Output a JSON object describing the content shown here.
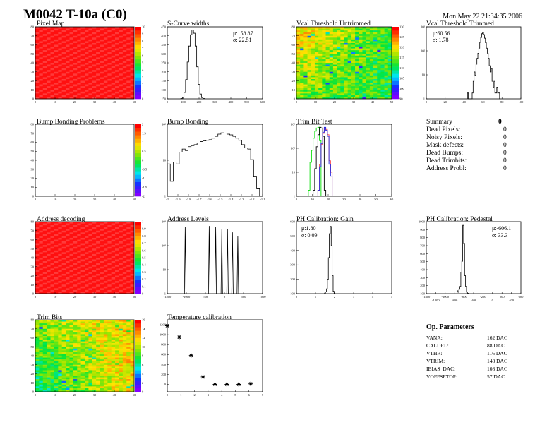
{
  "header": {
    "title": "M0042 T-10a (C0)",
    "timestamp": "Mon May 22 21:34:35 2006"
  },
  "colors": {
    "frame": "#000000",
    "pixel_map": "#ff0000",
    "trim_green": "#00dd00",
    "trim_black": "#000000",
    "trim_blue": "#2222dd",
    "trim_red": "#ff4444"
  },
  "panels": {
    "pixel_map": {
      "title": "Pixel Map",
      "type": "heatmap",
      "x_ticks": [
        "0",
        "10",
        "20",
        "30",
        "40",
        "50"
      ],
      "y_ticks": [
        "0",
        "10",
        "20",
        "30",
        "40",
        "50",
        "60",
        "70",
        "80"
      ],
      "z_ticks": [
        "0",
        "1",
        "2",
        "3",
        "4",
        "5",
        "6",
        "7",
        "8",
        "9",
        "10"
      ],
      "zlim": [
        0,
        10
      ],
      "uniform_value": 10
    },
    "scurve_widths": {
      "title": "S-Curve widths",
      "type": "histogram",
      "mean": "μ:158.87",
      "sigma": "σ: 22.51",
      "xlim": [
        0,
        600
      ],
      "ylim": [
        0,
        450
      ],
      "x_ticks": [
        "0",
        "100",
        "200",
        "300",
        "400",
        "500",
        "600"
      ],
      "y_ticks": [
        "50",
        "100",
        "150",
        "200",
        "250",
        "300",
        "350",
        "400",
        "450"
      ],
      "bins_x": [
        90,
        100,
        110,
        120,
        130,
        140,
        150,
        160,
        170,
        180,
        190,
        200,
        210,
        220,
        230
      ],
      "bins_y": [
        2,
        10,
        40,
        120,
        230,
        330,
        400,
        430,
        410,
        330,
        200,
        90,
        30,
        8,
        2
      ]
    },
    "vcal_untrimmed": {
      "title": "Vcal Threshold Untrimmed",
      "type": "heatmap",
      "x_ticks": [
        "0",
        "10",
        "20",
        "30",
        "40",
        "50"
      ],
      "y_ticks": [
        "0",
        "10",
        "20",
        "30",
        "40",
        "50",
        "60",
        "70",
        "80"
      ],
      "z_ticks": [
        "90",
        "100",
        "105",
        "110",
        "115",
        "120",
        "125",
        "130"
      ],
      "zlim": [
        90,
        130
      ]
    },
    "vcal_trimmed": {
      "title": "Vcal Threshold Trimmed",
      "type": "histogram",
      "log_y": true,
      "mean": "μ:60.56",
      "sigma": "σ: 1.78",
      "xlim": [
        0,
        100
      ],
      "ylim": [
        0.5,
        2500
      ],
      "x_ticks": [
        "0",
        "20",
        "40",
        "60",
        "80",
        "100"
      ],
      "y_ticks": [
        "1",
        "10",
        "10²",
        "10³"
      ],
      "bins_x": [
        44,
        45,
        46,
        47,
        48,
        49,
        50,
        51,
        52,
        53,
        54,
        55,
        56,
        57,
        58,
        59,
        60,
        61,
        62,
        63,
        64,
        65,
        66,
        67,
        68,
        69,
        70,
        71,
        72,
        73,
        74,
        75,
        76,
        77,
        78
      ],
      "bins_y": [
        1,
        0,
        0,
        0,
        0,
        1,
        4,
        12,
        8,
        30,
        60,
        110,
        200,
        400,
        700,
        1100,
        1300,
        1000,
        650,
        380,
        200,
        110,
        60,
        25,
        12,
        18,
        4,
        2,
        4,
        1,
        1,
        2,
        1,
        1,
        0
      ]
    },
    "bump_problems": {
      "title": "Bump Bonding Problems",
      "type": "heatmap",
      "x_ticks": [
        "0",
        "10",
        "20",
        "30",
        "40",
        "50"
      ],
      "y_ticks": [
        "0",
        "10",
        "20",
        "30",
        "40",
        "50",
        "60",
        "70",
        "80"
      ],
      "z_ticks": [
        "-2",
        "-1.5",
        "-1",
        "-0.5",
        "0",
        "0.5",
        "1",
        "1.5",
        "2"
      ],
      "zlim": [
        -2,
        2
      ],
      "empty": true
    },
    "bump_bonding": {
      "title": "Bump Bonding",
      "type": "histogram",
      "log_y": true,
      "xlim": [
        -2.0,
        -1.1
      ],
      "ylim": [
        0.5,
        400
      ],
      "x_ticks": [
        "-2",
        "-1.9",
        "-1.8",
        "-1.7",
        "-1.6",
        "-1.5",
        "-1.4",
        "-1.3",
        "-1.2",
        "-1.1"
      ],
      "y_ticks": [
        "1",
        "10",
        "10²"
      ],
      "bins_y": [
        10,
        2,
        12,
        10,
        30,
        40,
        35,
        50,
        55,
        60,
        70,
        80,
        85,
        90,
        95,
        110,
        130,
        160,
        180,
        175,
        160,
        150,
        130,
        110,
        90,
        60,
        45,
        40,
        15,
        3,
        1,
        0
      ]
    },
    "trim_bit_test": {
      "title": "Trim Bit Test",
      "type": "histogram",
      "log_y": true,
      "xlim": [
        0,
        60
      ],
      "ylim": [
        0.5,
        2000
      ],
      "x_ticks": [
        "0",
        "10",
        "20",
        "30",
        "40",
        "50",
        "60"
      ],
      "y_ticks": [
        "1",
        "10",
        "10²",
        "10³"
      ],
      "series": [
        {
          "color": "#00dd00",
          "bins_x": [
            8,
            9,
            10,
            11,
            12,
            13,
            14,
            15
          ],
          "bins_y": [
            1,
            25,
            100,
            400,
            900,
            1300,
            1400,
            300
          ]
        },
        {
          "color": "#000000",
          "bins_x": [
            11,
            12,
            13,
            14,
            15,
            16,
            17,
            18
          ],
          "bins_y": [
            1,
            12,
            150,
            600,
            1400,
            1300,
            500,
            1
          ]
        },
        {
          "color": "#ff4444",
          "bins_x": [
            14,
            15,
            16,
            17,
            18,
            19,
            20,
            21,
            22
          ],
          "bins_y": [
            1,
            20,
            200,
            700,
            1300,
            1100,
            600,
            30,
            8
          ]
        },
        {
          "color": "#2222dd",
          "bins_x": [
            14,
            15,
            16,
            17,
            18,
            19,
            20,
            21,
            22
          ],
          "bins_y": [
            1,
            15,
            220,
            800,
            1400,
            1000,
            500,
            20,
            5
          ]
        }
      ]
    },
    "summary": {
      "title": "Summary",
      "total": "0",
      "rows": [
        {
          "label": "Dead Pixels:",
          "value": "0"
        },
        {
          "label": "Noisy Pixels:",
          "value": "0"
        },
        {
          "label": "Mask defects:",
          "value": "0"
        },
        {
          "label": "Dead Bumps:",
          "value": "0"
        },
        {
          "label": "Dead Trimbits:",
          "value": "0"
        },
        {
          "label": "Address Probl:",
          "value": "0"
        }
      ]
    },
    "address_decoding": {
      "title": "Address decoding",
      "type": "heatmap",
      "x_ticks": [
        "0",
        "10",
        "20",
        "30",
        "40",
        "50"
      ],
      "y_ticks": [
        "0",
        "10",
        "20",
        "30",
        "40",
        "50",
        "60",
        "70",
        "80"
      ],
      "z_ticks": [
        "0",
        "0.1",
        "0.2",
        "0.3",
        "0.4",
        "0.5",
        "0.6",
        "0.7",
        "0.8",
        "0.9",
        "1"
      ],
      "zlim": [
        0,
        1
      ],
      "uniform_value": 1
    },
    "address_levels": {
      "title": "Address Levels",
      "type": "histogram",
      "log_y": true,
      "xlim": [
        -1500,
        1000
      ],
      "ylim": [
        0.5,
        1200
      ],
      "x_ticks": [
        "-1500",
        "-1000",
        "-500",
        "0",
        "500",
        "1000"
      ],
      "y_ticks": [
        "1",
        "10",
        "10²",
        "10³"
      ],
      "peaks_x": [
        -1030,
        -400,
        -230,
        -70,
        80,
        210,
        350
      ],
      "peaks_y": [
        700,
        750,
        650,
        550,
        520,
        380,
        260
      ]
    },
    "ph_gain": {
      "title": "PH Calibration: Gain",
      "type": "histogram",
      "mean": "μ:1.80",
      "sigma": "σ: 0.09",
      "xlim": [
        0,
        5
      ],
      "ylim": [
        0,
        600
      ],
      "x_ticks": [
        "0",
        "1",
        "2",
        "3",
        "4",
        "5"
      ],
      "y_ticks": [
        "100",
        "200",
        "300",
        "400",
        "500",
        "600"
      ],
      "bins_x": [
        1.5,
        1.55,
        1.6,
        1.65,
        1.7,
        1.75,
        1.8,
        1.85,
        1.9,
        1.95,
        2.0
      ],
      "bins_y": [
        5,
        15,
        40,
        120,
        300,
        500,
        560,
        400,
        150,
        20,
        2
      ]
    },
    "ph_pedestal": {
      "title": "PH Calibration: Pedestal",
      "type": "histogram",
      "mean": "μ:-606.1",
      "sigma": "σ: 33.3",
      "xlim": [
        -1400,
        600
      ],
      "ylim": [
        0,
        1000
      ],
      "x_ticks": [
        "-1400",
        "-1200",
        "-1000",
        "-800",
        "-600",
        "-400",
        "-200",
        "0",
        "200",
        "400",
        "600"
      ],
      "y_ticks": [
        "100",
        "200",
        "300",
        "400",
        "500",
        "600",
        "700",
        "800",
        "900",
        "1000"
      ],
      "bins_x": [
        -740,
        -720,
        -700,
        -680,
        -660,
        -640,
        -620,
        -600,
        -580,
        -560,
        -540,
        -520
      ],
      "bins_y": [
        40,
        20,
        60,
        100,
        300,
        450,
        950,
        700,
        250,
        100,
        20,
        5
      ]
    },
    "trim_bits": {
      "title": "Trim Bits",
      "type": "heatmap",
      "x_ticks": [
        "0",
        "10",
        "20",
        "30",
        "40",
        "50"
      ],
      "y_ticks": [
        "0",
        "10",
        "20",
        "30",
        "40",
        "50",
        "60",
        "70",
        "80"
      ],
      "z_ticks": [
        "0",
        "2",
        "4",
        "6",
        "8",
        "10",
        "12",
        "14",
        "16"
      ],
      "zlim": [
        0,
        16
      ]
    },
    "temperature": {
      "title": "Temperature calibration",
      "type": "scatter",
      "xlim": [
        0,
        8
      ],
      "ylim": [
        -150,
        1300
      ],
      "x_ticks": [
        "0",
        "1",
        "2",
        "3",
        "4",
        "5",
        "6",
        "7"
      ],
      "y_ticks": [
        "0",
        "200",
        "400",
        "600",
        "800",
        "1000",
        "1200"
      ],
      "x": [
        0,
        1,
        2,
        3,
        4,
        5,
        6,
        7
      ],
      "y": [
        1180,
        950,
        580,
        150,
        0,
        0,
        0,
        10
      ]
    }
  },
  "op_parameters": {
    "title": "Op. Parameters",
    "rows": [
      {
        "label": "VANA:",
        "value": "162 DAC"
      },
      {
        "label": "CALDEL:",
        "value": "88 DAC"
      },
      {
        "label": "VTHR:",
        "value": "116 DAC"
      },
      {
        "label": "VTRIM:",
        "value": "148 DAC"
      },
      {
        "label": "IBIAS_DAC:",
        "value": "108 DAC"
      },
      {
        "label": "VOFFSETOP:",
        "value": "57 DAC"
      }
    ]
  }
}
